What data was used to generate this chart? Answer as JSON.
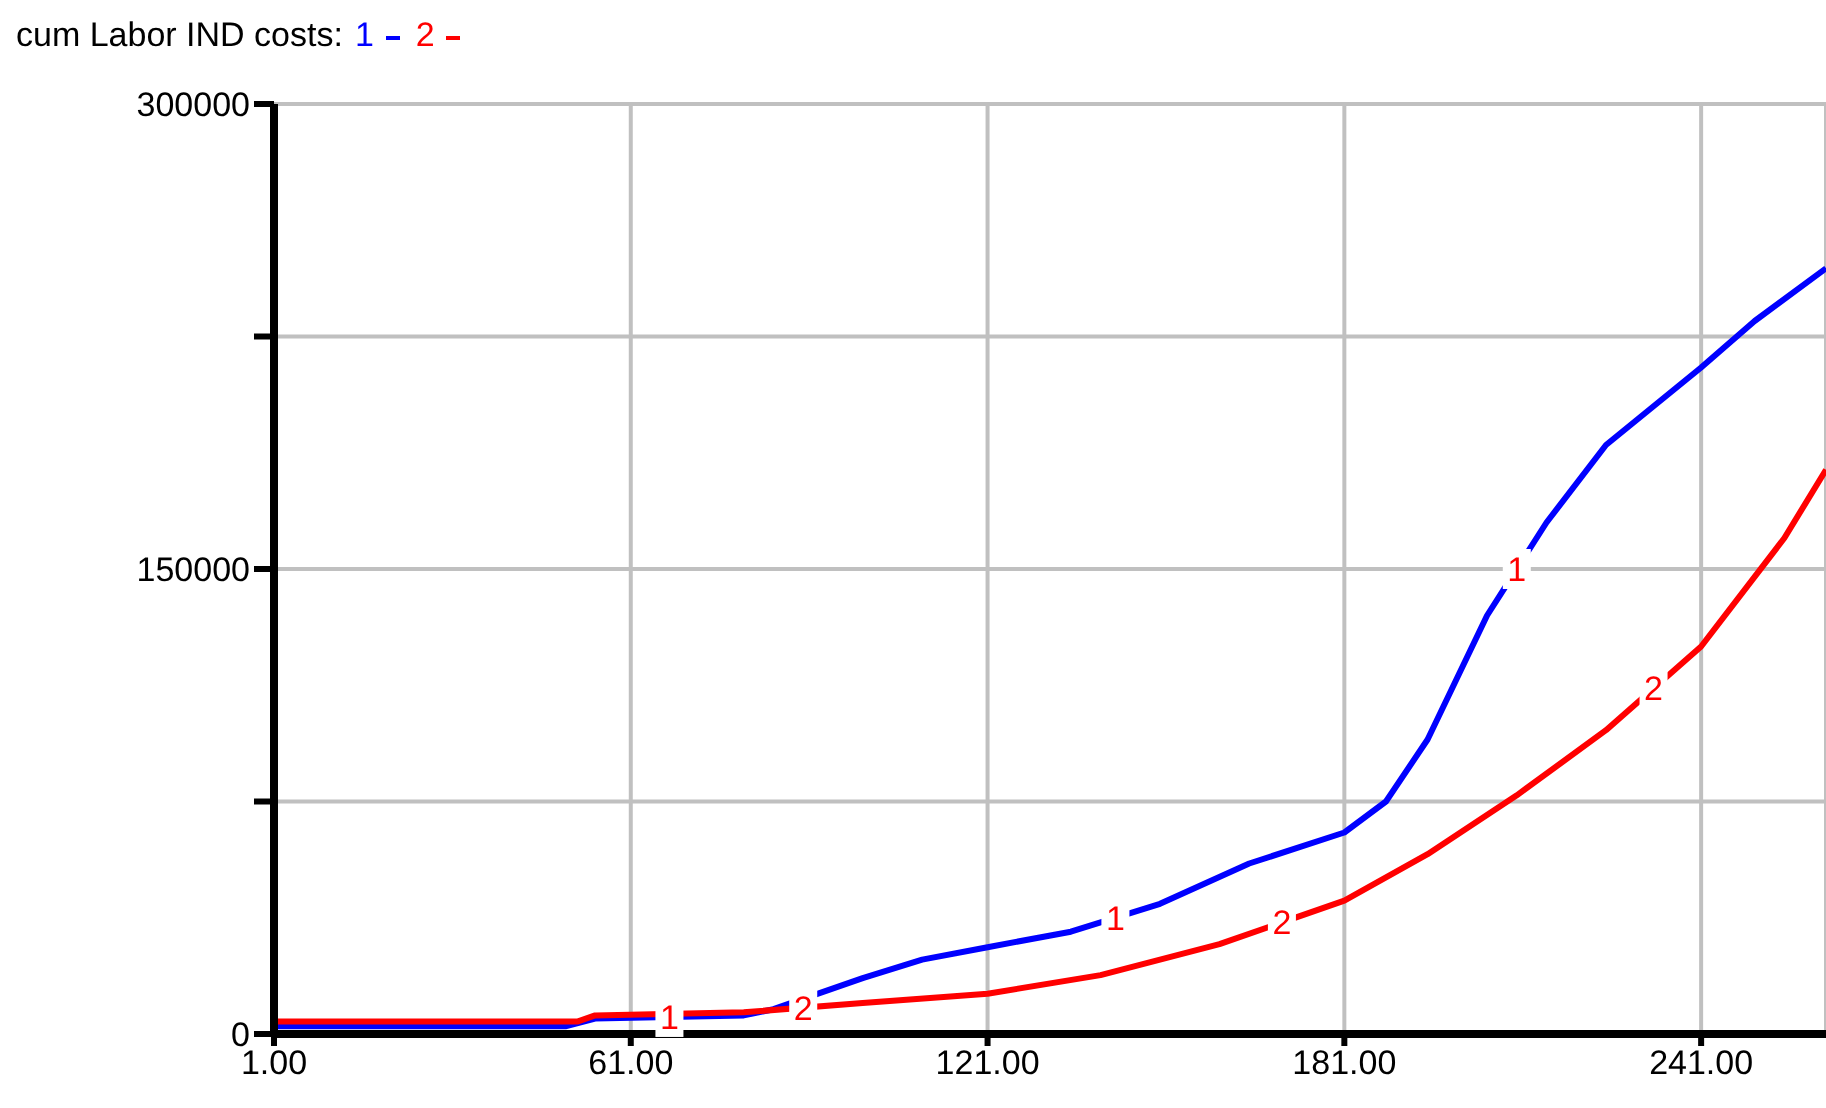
{
  "chart_data": {
    "type": "line",
    "title": "cum Labor IND costs:",
    "legend": "top left",
    "grid": true,
    "marker": "none",
    "line_style": "solid",
    "xlim": [
      1,
      262
    ],
    "xticks": [
      {
        "value": 1,
        "label": "1.00"
      },
      {
        "value": 61,
        "label": "61.00"
      },
      {
        "value": 121,
        "label": "121.00"
      },
      {
        "value": 181,
        "label": "181.00"
      },
      {
        "value": 241,
        "label": "241.00"
      }
    ],
    "ylim": [
      0,
      300000
    ],
    "yticks": [
      0,
      {
        "value": 75000,
        "label": null
      },
      150000,
      {
        "value": 225000,
        "label": null
      },
      300000
    ],
    "series": [
      {
        "name": "1",
        "color": "#0000ff",
        "x": [
          1,
          50,
          55,
          80,
          85,
          100,
          110,
          121,
          135,
          150,
          165,
          181,
          188,
          195,
          205,
          215,
          225,
          241,
          250,
          262
        ],
        "values": [
          2500,
          2500,
          5000,
          6000,
          8000,
          18000,
          24000,
          28000,
          33000,
          42000,
          55000,
          65000,
          75000,
          95000,
          135000,
          165000,
          190000,
          215000,
          230000,
          247000
        ]
      },
      {
        "name": "2",
        "color": "#ff0000",
        "x": [
          1,
          52,
          55,
          80,
          100,
          121,
          140,
          160,
          181,
          195,
          210,
          225,
          241,
          255,
          262
        ],
        "values": [
          4000,
          4000,
          6000,
          7000,
          10000,
          13000,
          19000,
          29000,
          43000,
          58000,
          77000,
          98000,
          125000,
          160000,
          182000
        ]
      }
    ]
  }
}
